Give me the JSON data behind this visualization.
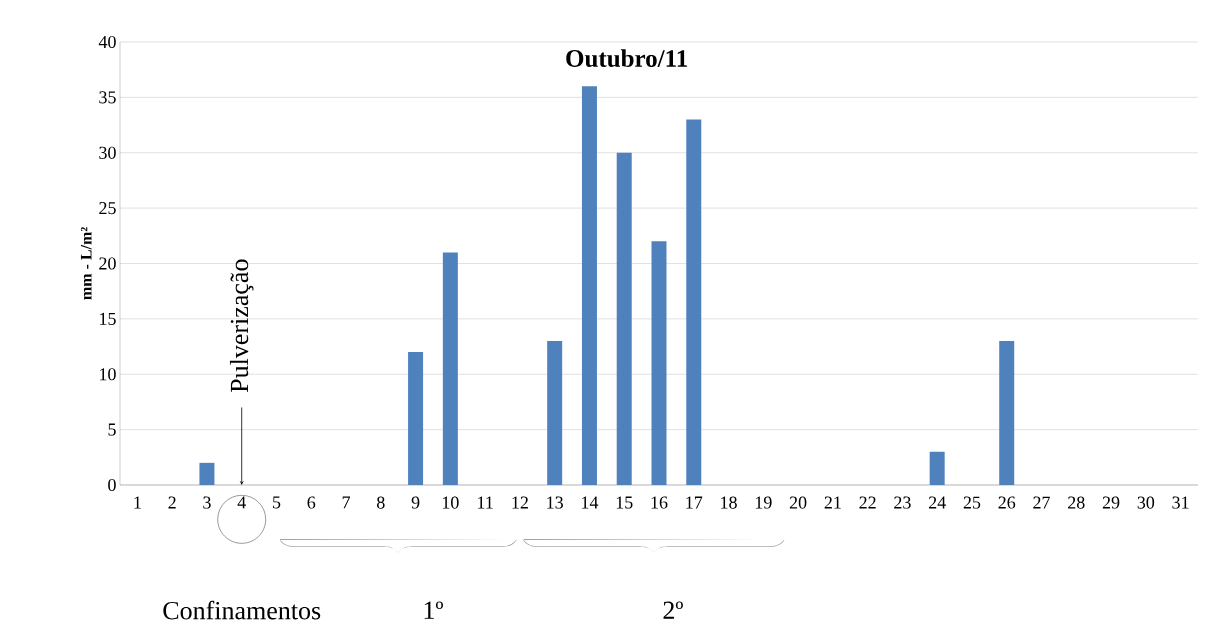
{
  "chart_data": {
    "type": "bar",
    "title": "Outubro/11",
    "ylabel": "mm - L/m²",
    "categories": [
      "1",
      "2",
      "3",
      "4",
      "5",
      "6",
      "7",
      "8",
      "9",
      "10",
      "11",
      "12",
      "13",
      "14",
      "15",
      "16",
      "17",
      "18",
      "19",
      "20",
      "21",
      "22",
      "23",
      "24",
      "25",
      "26",
      "27",
      "28",
      "29",
      "30",
      "31"
    ],
    "values": [
      0,
      0,
      2,
      0,
      0,
      0,
      0,
      0,
      12,
      21,
      0,
      0,
      13,
      36,
      30,
      22,
      33,
      0,
      0,
      0,
      0,
      0,
      0,
      3,
      0,
      13,
      0,
      0,
      0,
      0,
      0
    ],
    "color": "#4f81bd",
    "ylim": [
      0,
      40
    ],
    "yticks": [
      0,
      5,
      10,
      15,
      20,
      25,
      30,
      35,
      40
    ],
    "grid": "y",
    "annotations": [
      {
        "text": "Pulverização",
        "x": "4",
        "y": 0
      },
      "Confinamentos",
      "1º",
      "2º"
    ]
  }
}
